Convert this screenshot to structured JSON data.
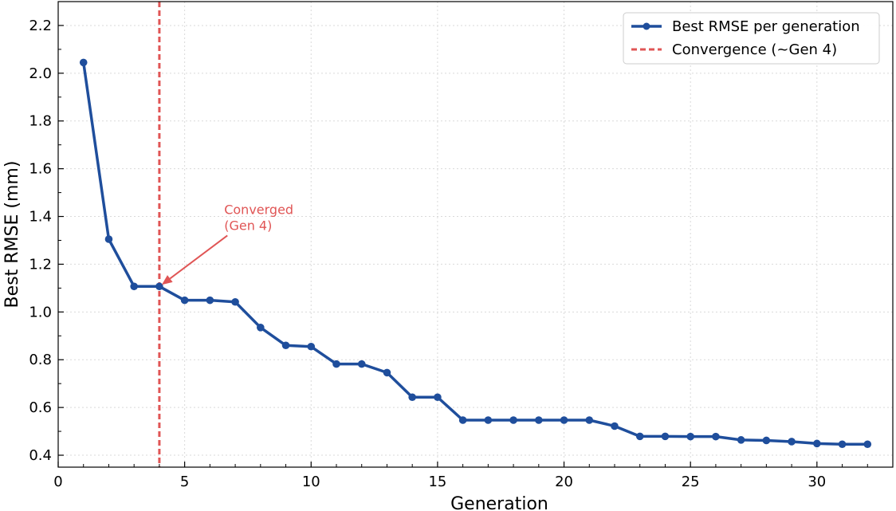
{
  "chart_data": {
    "type": "line",
    "xlabel": "Generation",
    "ylabel": "Best RMSE (mm)",
    "xlim": [
      0,
      33
    ],
    "ylim": [
      0.35,
      2.3
    ],
    "xticks": [
      0,
      5,
      10,
      15,
      20,
      25,
      30
    ],
    "yticks": [
      0.4,
      0.6,
      0.8,
      1.0,
      1.2,
      1.4,
      1.6,
      1.8,
      2.0,
      2.2
    ],
    "ytick_labels": [
      "0.4",
      "0.6",
      "0.8",
      "1.0",
      "1.2",
      "1.4",
      "1.6",
      "1.8",
      "2.0",
      "2.2"
    ],
    "grid": true,
    "legend_position": "top-right",
    "series": [
      {
        "name": "Best RMSE per generation",
        "color": "#1f4e9c",
        "x": [
          1,
          2,
          3,
          4,
          5,
          6,
          7,
          8,
          9,
          10,
          11,
          12,
          13,
          14,
          15,
          16,
          17,
          18,
          19,
          20,
          21,
          22,
          23,
          24,
          25,
          26,
          27,
          28,
          29,
          30,
          31,
          32
        ],
        "y": [
          2.045,
          1.305,
          1.107,
          1.107,
          1.049,
          1.049,
          1.042,
          0.935,
          0.86,
          0.855,
          0.782,
          0.782,
          0.746,
          0.643,
          0.643,
          0.547,
          0.547,
          0.547,
          0.547,
          0.547,
          0.547,
          0.522,
          0.479,
          0.479,
          0.478,
          0.478,
          0.464,
          0.462,
          0.457,
          0.449,
          0.446,
          0.446
        ]
      }
    ],
    "reference_line": {
      "name": "Convergence (~Gen 4)",
      "x": 4,
      "color": "#e05555",
      "style": "dashed"
    },
    "annotation": {
      "lines": [
        "Converged",
        "(Gen 4)"
      ],
      "target_x": 4,
      "target_y": 1.107,
      "text_x": 6.5,
      "text_y": 1.29,
      "color": "#e05555"
    }
  }
}
